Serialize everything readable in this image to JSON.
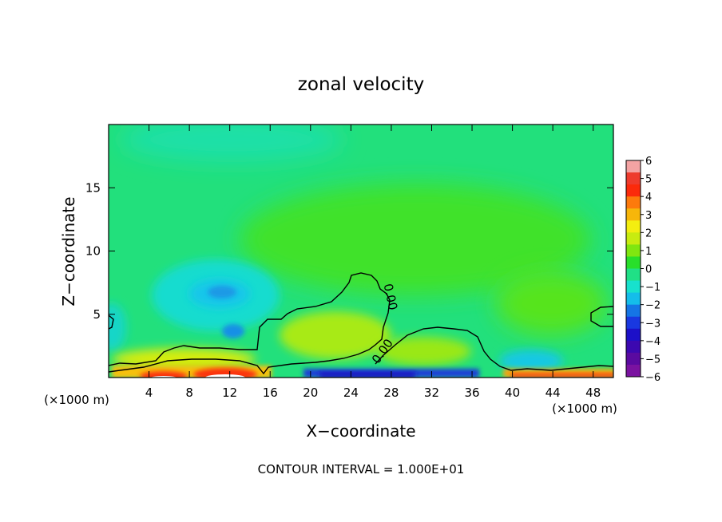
{
  "chart_data": {
    "type": "heatmap",
    "title": "zonal velocity",
    "xlabel": "X−coordinate",
    "ylabel": "Z−coordinate",
    "x_unit_left": "(×1000 m)",
    "x_unit_right": "(×1000 m)",
    "footer": "CONTOUR INTERVAL = 1.000E+01",
    "xlim": [
      0,
      50
    ],
    "ylim": [
      0,
      20
    ],
    "xticks": [
      4,
      8,
      12,
      16,
      20,
      24,
      28,
      32,
      36,
      40,
      44,
      48
    ],
    "yticks": [
      5,
      10,
      15
    ],
    "colorbar": {
      "labels": [
        "6",
        "5",
        "4",
        "3",
        "2",
        "1",
        "0",
        "−1",
        "−2",
        "−3",
        "−4",
        "−5",
        "−6"
      ],
      "colors": [
        "#f4a3a3",
        "#ee3b2d",
        "#fb2a0b",
        "#fd7a0c",
        "#f7b60a",
        "#f4ee10",
        "#c8ec10",
        "#80e610",
        "#28df2a",
        "#20e086",
        "#17e1cd",
        "#14bdea",
        "#1575e5",
        "#1938e0",
        "#1c10c8",
        "#3c08b0",
        "#5a0aa0",
        "#7a12a0"
      ]
    },
    "contour_labels": [
      "0.00",
      "0.00"
    ]
  }
}
